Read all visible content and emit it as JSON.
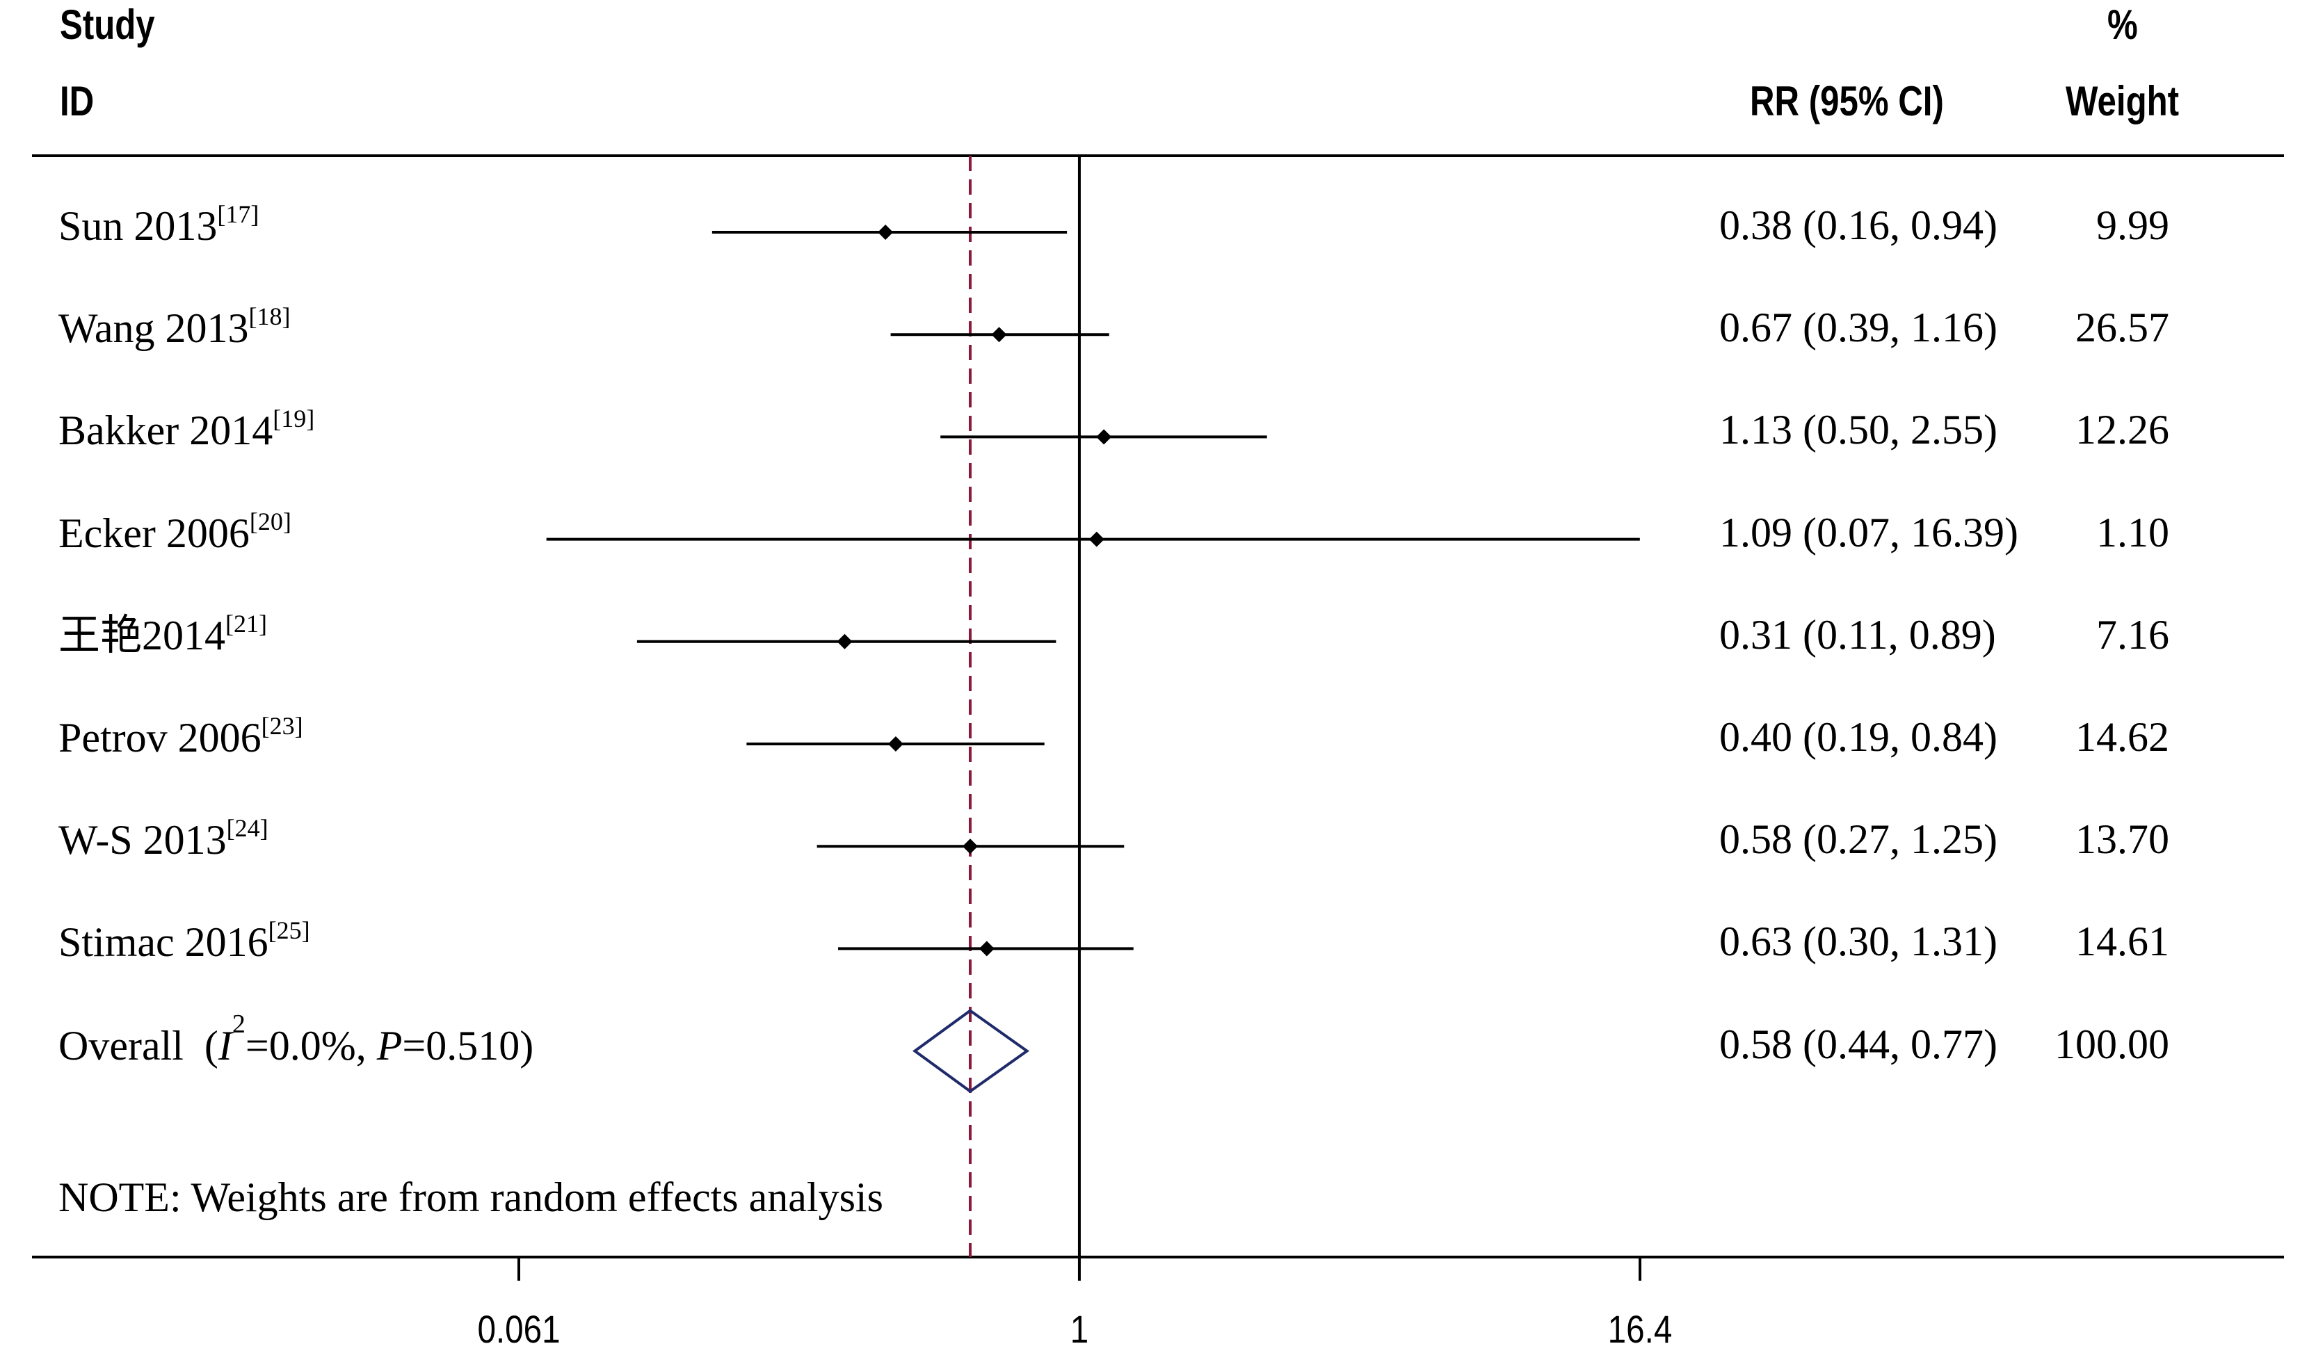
{
  "header": {
    "study_line1": "Study",
    "study_line2": "ID",
    "rr_label": "RR (95% CI)",
    "weight_line1": "%",
    "weight_line2": "Weight"
  },
  "note": "NOTE: Weights are from random effects analysis",
  "colors": {
    "line": "#000000",
    "overall_diamond": "#1f2a6b",
    "overall_dashed_line": "#8b1a3a"
  },
  "chart_data": {
    "type": "forest",
    "x_scale": "log",
    "x_range": [
      0.061,
      16.4
    ],
    "x_ticks": [
      {
        "value": 0.061,
        "label": "0.061"
      },
      {
        "value": 1,
        "label": "1"
      },
      {
        "value": 16.4,
        "label": "16.4"
      }
    ],
    "null_line": 1,
    "studies": [
      {
        "name": "Sun 2013",
        "ref": "[17]",
        "rr": 0.38,
        "lower": 0.16,
        "upper": 0.94,
        "rr_text": "0.38 (0.16, 0.94)",
        "weight": "9.99"
      },
      {
        "name": "Wang 2013",
        "ref": "[18]",
        "rr": 0.67,
        "lower": 0.39,
        "upper": 1.16,
        "rr_text": "0.67 (0.39, 1.16)",
        "weight": "26.57"
      },
      {
        "name": "Bakker 2014",
        "ref": "[19]",
        "rr": 1.13,
        "lower": 0.5,
        "upper": 2.55,
        "rr_text": "1.13 (0.50, 2.55)",
        "weight": "12.26"
      },
      {
        "name": "Ecker 2006",
        "ref": "[20]",
        "rr": 1.09,
        "lower": 0.07,
        "upper": 16.39,
        "rr_text": "1.09 (0.07, 16.39)",
        "weight": "1.10"
      },
      {
        "name": "王艳2014",
        "ref": "[21]",
        "rr": 0.31,
        "lower": 0.11,
        "upper": 0.89,
        "rr_text": "0.31 (0.11, 0.89)",
        "weight": "7.16"
      },
      {
        "name": "Petrov 2006",
        "ref": "[23]",
        "rr": 0.4,
        "lower": 0.19,
        "upper": 0.84,
        "rr_text": "0.40 (0.19, 0.84)",
        "weight": "14.62"
      },
      {
        "name": "W-S 2013",
        "ref": "[24]",
        "rr": 0.58,
        "lower": 0.27,
        "upper": 1.25,
        "rr_text": "0.58 (0.27, 1.25)",
        "weight": "13.70"
      },
      {
        "name": "Stimac 2016",
        "ref": "[25]",
        "rr": 0.63,
        "lower": 0.3,
        "upper": 1.31,
        "rr_text": "0.63 (0.30, 1.31)",
        "weight": "14.61"
      }
    ],
    "overall": {
      "label_prefix": "Overall  (",
      "i2_symbol": "I",
      "i2_sup": "2",
      "i2_value": "=0.0%, ",
      "p_symbol": "P",
      "p_value": "=0.510)",
      "rr": 0.58,
      "lower": 0.44,
      "upper": 0.77,
      "rr_text": "0.58 (0.44, 0.77)",
      "weight": "100.00"
    }
  }
}
